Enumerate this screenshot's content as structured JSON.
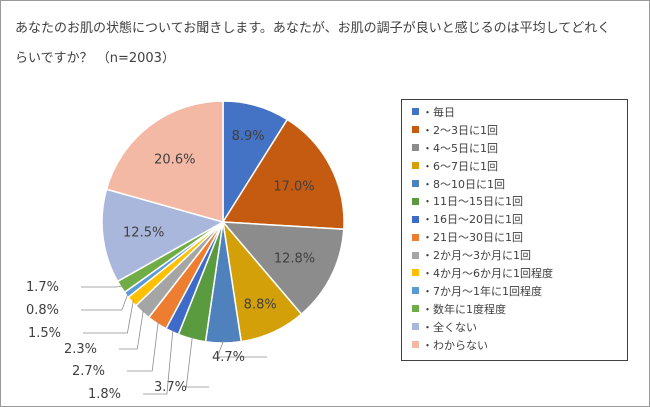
{
  "title": "あなたのお肌の状態についてお聞きします。あなたが、お肌の調子が良いと感じるのは平均してどれくらいですか？ （n=2003）",
  "chart_data": {
    "type": "pie",
    "categories": [
      "・毎日",
      "・2～3日に1回",
      "・4～5日に1回",
      "・6～7日に1回",
      "・8～10日に1回",
      "・11日～15日に1回",
      "・16日～20日に1回",
      "・21日～30日に1回",
      "・2か月～3か月に1回",
      "・4か月～6か月に1回程度",
      "・7か月～1年に1回程度",
      "・数年に1度程度",
      "・全くない",
      "・わからない"
    ],
    "values": [
      8.9,
      17.0,
      12.8,
      8.8,
      4.7,
      3.7,
      1.8,
      2.7,
      2.3,
      1.5,
      0.8,
      1.7,
      12.5,
      20.6
    ],
    "data_labels": [
      "8.9%",
      "17.0%",
      "12.8%",
      "8.8%",
      "4.7%",
      "3.7%",
      "1.8%",
      "2.7%",
      "2.3%",
      "1.5%",
      "0.8%",
      "1.7%",
      "12.5%",
      "20.6%"
    ],
    "colors": [
      "#4472C4",
      "#C55A11",
      "#8C8C8C",
      "#D4A00A",
      "#4F81BD",
      "#5B9B3F",
      "#3E6BC9",
      "#ED7D31",
      "#A5A5A5",
      "#FFC000",
      "#5B9BD5",
      "#70AD47",
      "#A9B7DC",
      "#F4B9A5"
    ],
    "legend_position": "right"
  }
}
